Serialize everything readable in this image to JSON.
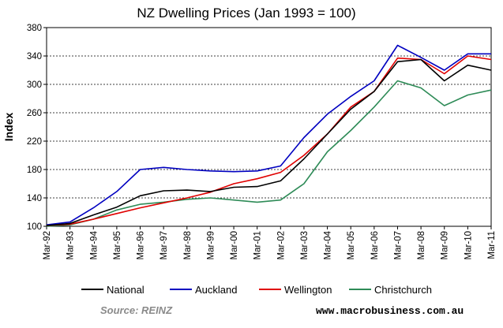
{
  "chart_data": {
    "type": "line",
    "title": "NZ Dwelling Prices (Jan 1993 = 100)",
    "ylabel": "Index",
    "xlabel": "",
    "ylim": [
      100,
      380
    ],
    "yticks": [
      100,
      140,
      180,
      220,
      260,
      300,
      340,
      380
    ],
    "x_tick_labels": [
      "Mar-92",
      "Mar-93",
      "Mar-94",
      "Mar-95",
      "Mar-96",
      "Mar-97",
      "Mar-98",
      "Mar-99",
      "Mar-00",
      "Mar-01",
      "Mar-02",
      "Mar-03",
      "Mar-04",
      "Mar-05",
      "Mar-06",
      "Mar-07",
      "Mar-08",
      "Mar-09",
      "Mar-10",
      "Mar-11"
    ],
    "grid": "horizontal dashed",
    "legend_position": "bottom",
    "series": [
      {
        "name": "National",
        "color": "#000000",
        "x": [
          "Mar-92",
          "Mar-93",
          "Mar-94",
          "Mar-95",
          "Mar-96",
          "Mar-97",
          "Mar-98",
          "Mar-99",
          "Mar-00",
          "Mar-01",
          "Mar-02",
          "Mar-03",
          "Mar-04",
          "Mar-05",
          "Mar-06",
          "Mar-07",
          "Mar-08",
          "Mar-09",
          "Mar-10",
          "Mar-11"
        ],
        "values": [
          101,
          104,
          116,
          127,
          143,
          150,
          151,
          149,
          155,
          156,
          164,
          195,
          230,
          265,
          290,
          332,
          335,
          305,
          327,
          320
        ]
      },
      {
        "name": "Auckland",
        "color": "#0000c0",
        "x": [
          "Mar-92",
          "Mar-93",
          "Mar-94",
          "Mar-95",
          "Mar-96",
          "Mar-97",
          "Mar-98",
          "Mar-99",
          "Mar-00",
          "Mar-01",
          "Mar-02",
          "Mar-03",
          "Mar-04",
          "Mar-05",
          "Mar-06",
          "Mar-07",
          "Mar-08",
          "Mar-09",
          "Mar-10",
          "Mar-11"
        ],
        "values": [
          102,
          106,
          126,
          149,
          180,
          183,
          180,
          178,
          177,
          178,
          185,
          225,
          258,
          283,
          305,
          355,
          338,
          320,
          343,
          343
        ]
      },
      {
        "name": "Wellington",
        "color": "#e00000",
        "x": [
          "Mar-92",
          "Mar-93",
          "Mar-94",
          "Mar-95",
          "Mar-96",
          "Mar-97",
          "Mar-98",
          "Mar-99",
          "Mar-00",
          "Mar-01",
          "Mar-02",
          "Mar-03",
          "Mar-04",
          "Mar-05",
          "Mar-06",
          "Mar-07",
          "Mar-08",
          "Mar-09",
          "Mar-10",
          "Mar-11"
        ],
        "values": [
          101,
          103,
          110,
          118,
          126,
          133,
          140,
          148,
          160,
          167,
          176,
          200,
          230,
          268,
          290,
          337,
          335,
          315,
          340,
          335
        ]
      },
      {
        "name": "Christchurch",
        "color": "#2e8b57",
        "x": [
          "Mar-92",
          "Mar-93",
          "Mar-94",
          "Mar-95",
          "Mar-96",
          "Mar-97",
          "Mar-98",
          "Mar-99",
          "Mar-00",
          "Mar-01",
          "Mar-02",
          "Mar-03",
          "Mar-04",
          "Mar-05",
          "Mar-06",
          "Mar-07",
          "Mar-08",
          "Mar-09",
          "Mar-10",
          "Mar-11"
        ],
        "values": [
          100,
          102,
          110,
          123,
          131,
          134,
          138,
          140,
          137,
          134,
          137,
          160,
          205,
          235,
          268,
          305,
          295,
          270,
          285,
          292
        ]
      }
    ]
  },
  "source": "Source: REINZ",
  "website": "www.macrobusiness.com.au"
}
